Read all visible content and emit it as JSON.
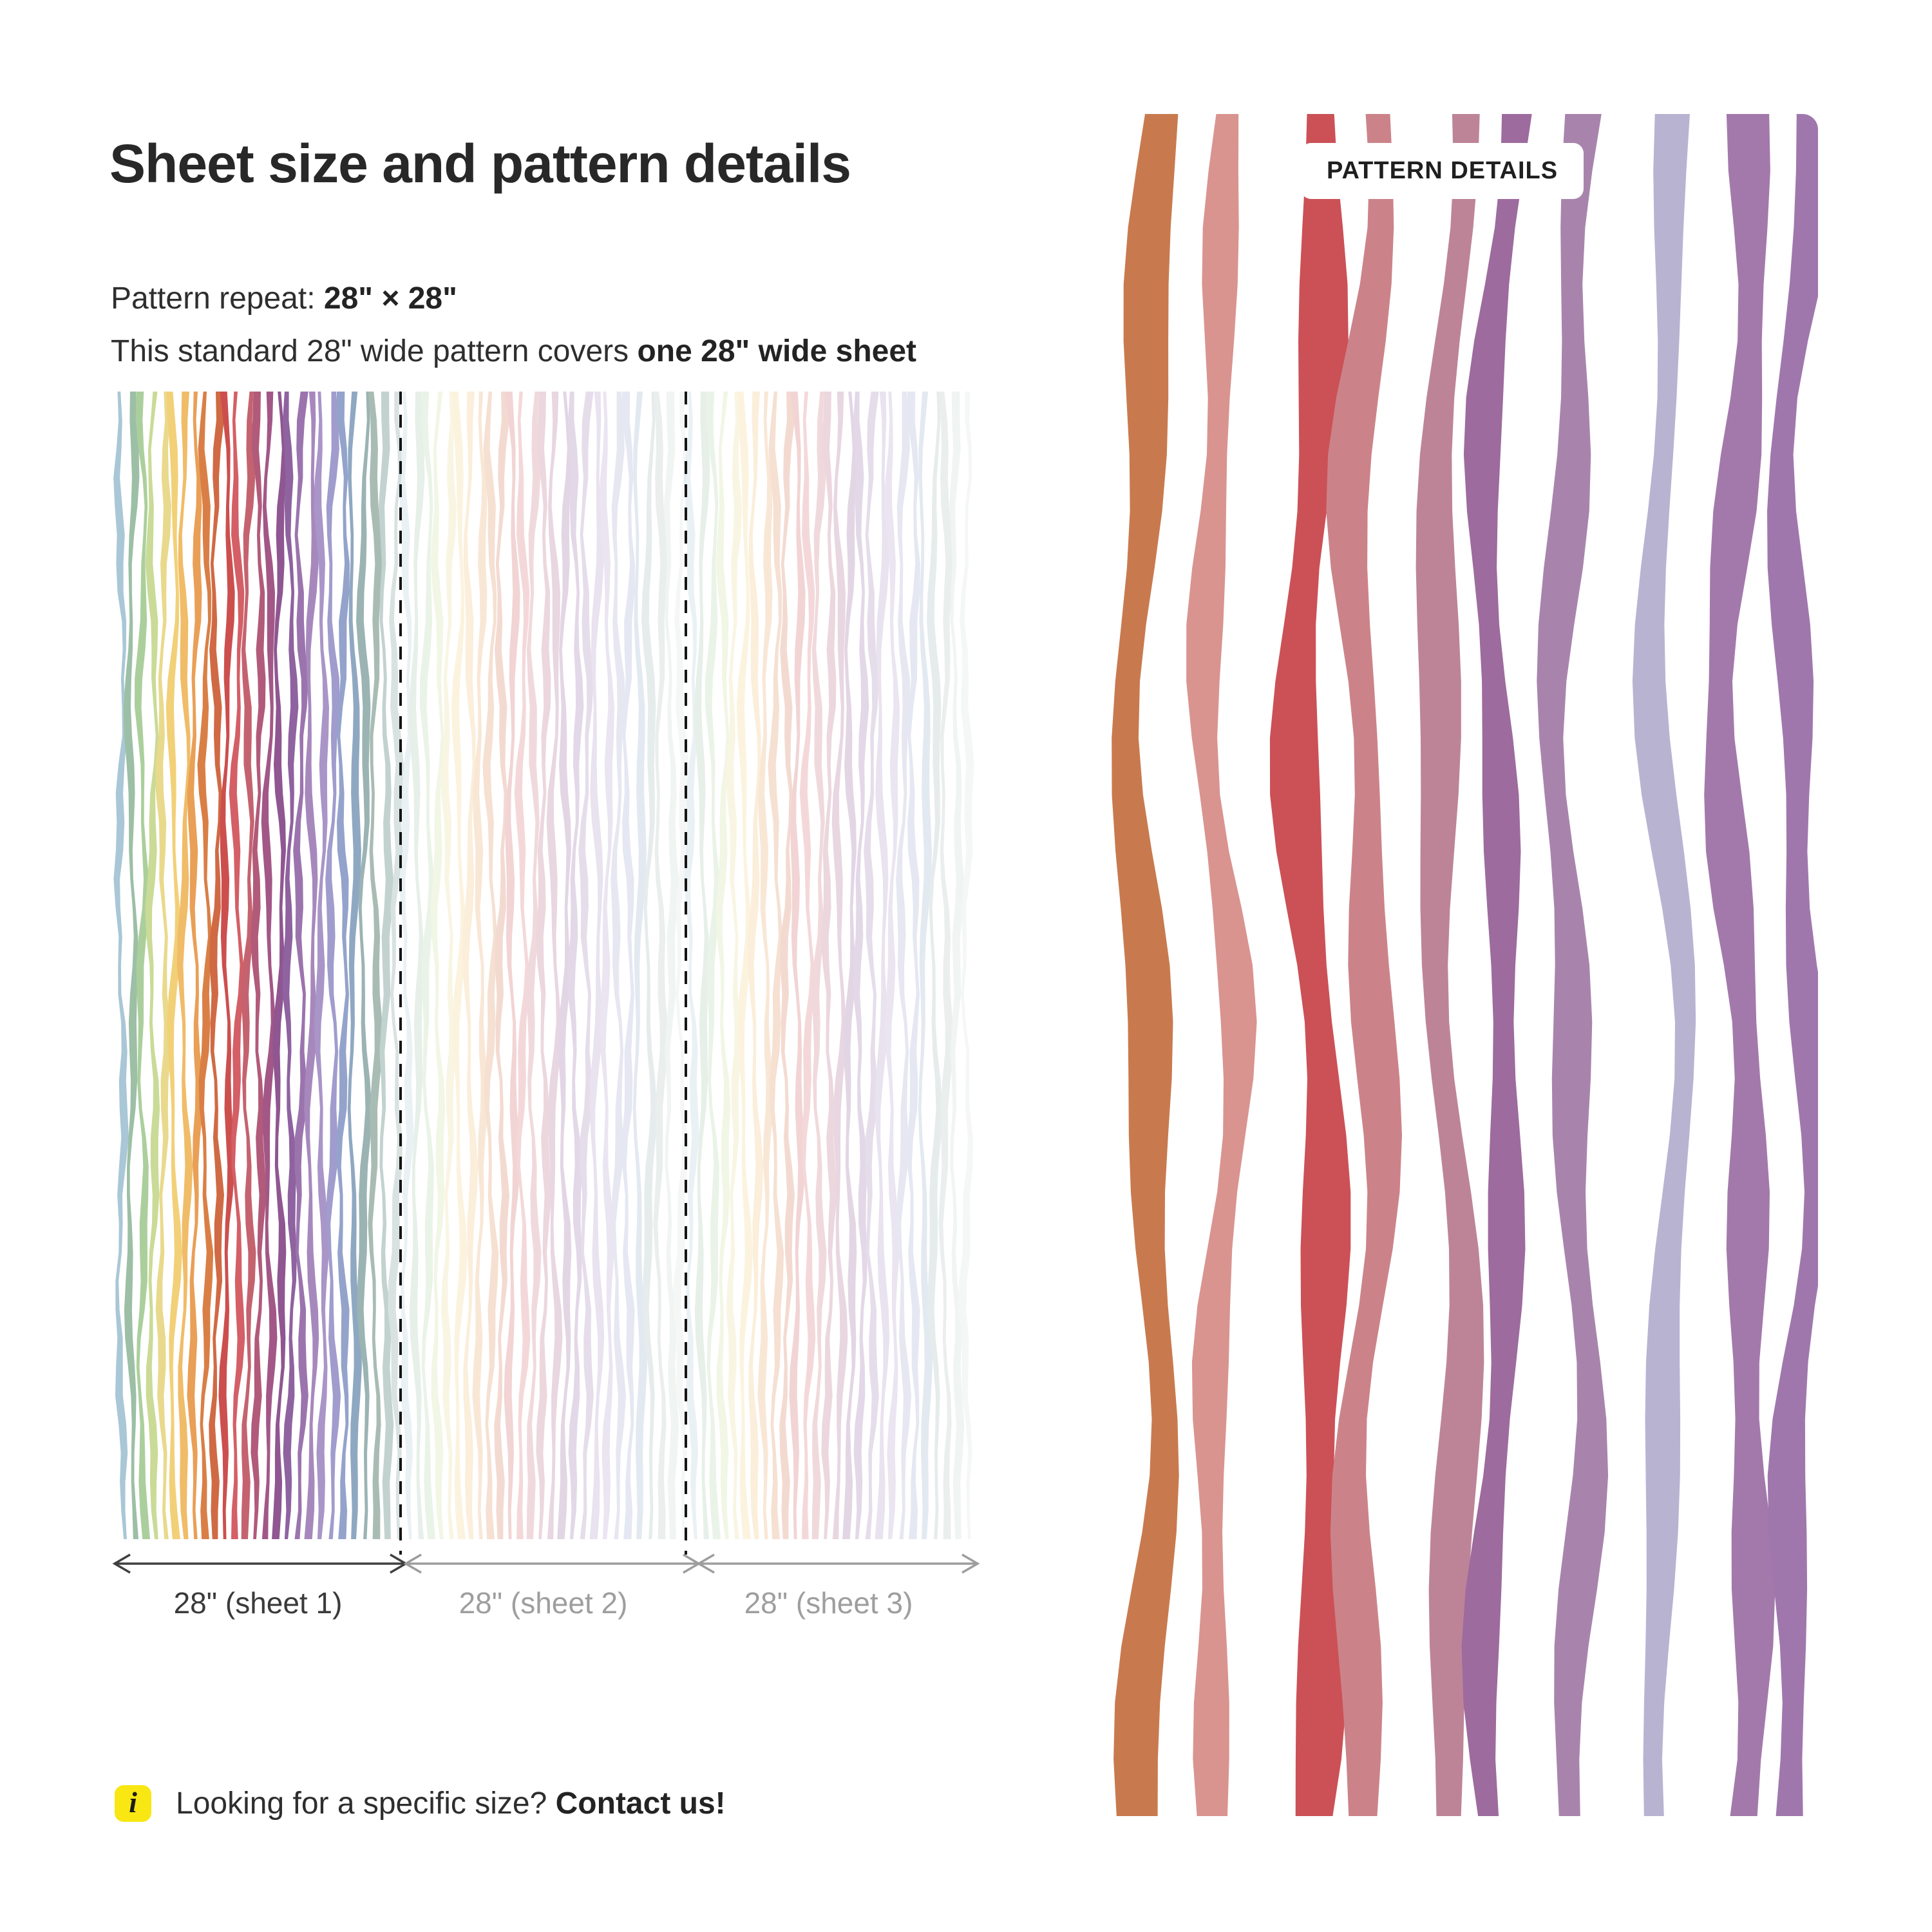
{
  "header": {
    "title": "Sheet size and pattern details"
  },
  "specs": {
    "repeat_label": "Pattern repeat: ",
    "repeat_value": "28\" × 28\"",
    "coverage_prefix": "This standard 28\" wide pattern covers ",
    "coverage_bold": "one 28\" wide sheet"
  },
  "sheet_labels": [
    "28\" (sheet 1)",
    "28\" (sheet 2)",
    "28\" (sheet 3)"
  ],
  "info": {
    "prefix": "Looking for a specific size? ",
    "cta": "Contact us!"
  },
  "detail_panel": {
    "badge": "PATTERN DETAILS"
  },
  "colors": {
    "heading": "#282828",
    "body_text": "#2e2e2e",
    "muted_text": "#9e9e9e",
    "arrow_dark": "#3f3f3f",
    "arrow_gray": "#9d9d9d",
    "separator": "#151515",
    "info_icon_bg": "#f8e713",
    "info_icon_glyph": "#1c1c1c",
    "badge_bg": "#ffffff",
    "badge_text": "#1f1f1f"
  },
  "pattern": {
    "sheet_palette": [
      "#a9c7d6",
      "#9cbfa6",
      "#abcf9c",
      "#c9db96",
      "#e9d98c",
      "#f2d077",
      "#f0bc68",
      "#e99f56",
      "#d97f46",
      "#d06a44",
      "#cc4f4e",
      "#d45f66",
      "#c4636f",
      "#b25a7a",
      "#a25787",
      "#8f5691",
      "#8f62a0",
      "#9b74ae",
      "#a788bd",
      "#a995c7",
      "#a09ccd",
      "#94a3cb",
      "#8fa8c2",
      "#9bb3b3",
      "#a9bcb4",
      "#c2d2cf",
      "#d8e2e1"
    ],
    "faded_opacity": 0.24,
    "detail": {
      "colors": [
        "#c87a4e",
        "#d99490",
        "#cb5156",
        "#cb8389",
        "#bd8498",
        "#9d6b9e",
        "#a884ad",
        "#b9b3d2",
        "#a379ab",
        "#9f77ad"
      ],
      "centers": [
        91,
        205,
        353,
        433,
        559,
        638,
        752,
        900,
        1015,
        1106
      ],
      "widths": [
        54,
        44,
        60,
        52,
        50,
        45,
        47,
        42,
        52,
        46
      ]
    }
  }
}
